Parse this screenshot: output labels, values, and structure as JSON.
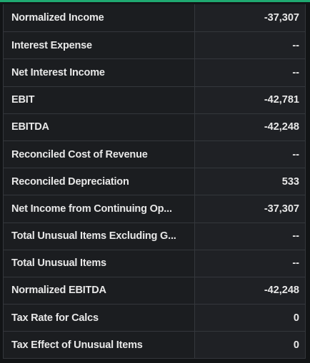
{
  "table": {
    "rows": [
      [
        "Normalized Income",
        "-37,307"
      ],
      [
        "Interest Expense",
        "--"
      ],
      [
        "Net Interest Income",
        "--"
      ],
      [
        "EBIT",
        "-42,781"
      ],
      [
        "EBITDA",
        "-42,248"
      ],
      [
        "Reconciled Cost of Revenue",
        "--"
      ],
      [
        "Reconciled Depreciation",
        "533"
      ],
      [
        "Net Income from Continuing Op...",
        "-37,307"
      ],
      [
        "Total Unusual Items Excluding G...",
        "--"
      ],
      [
        "Total Unusual Items",
        "--"
      ],
      [
        "Normalized EBITDA",
        "-42,248"
      ],
      [
        "Tax Rate for Calcs",
        "0"
      ],
      [
        "Tax Effect of Unusual Items",
        "0"
      ]
    ]
  }
}
